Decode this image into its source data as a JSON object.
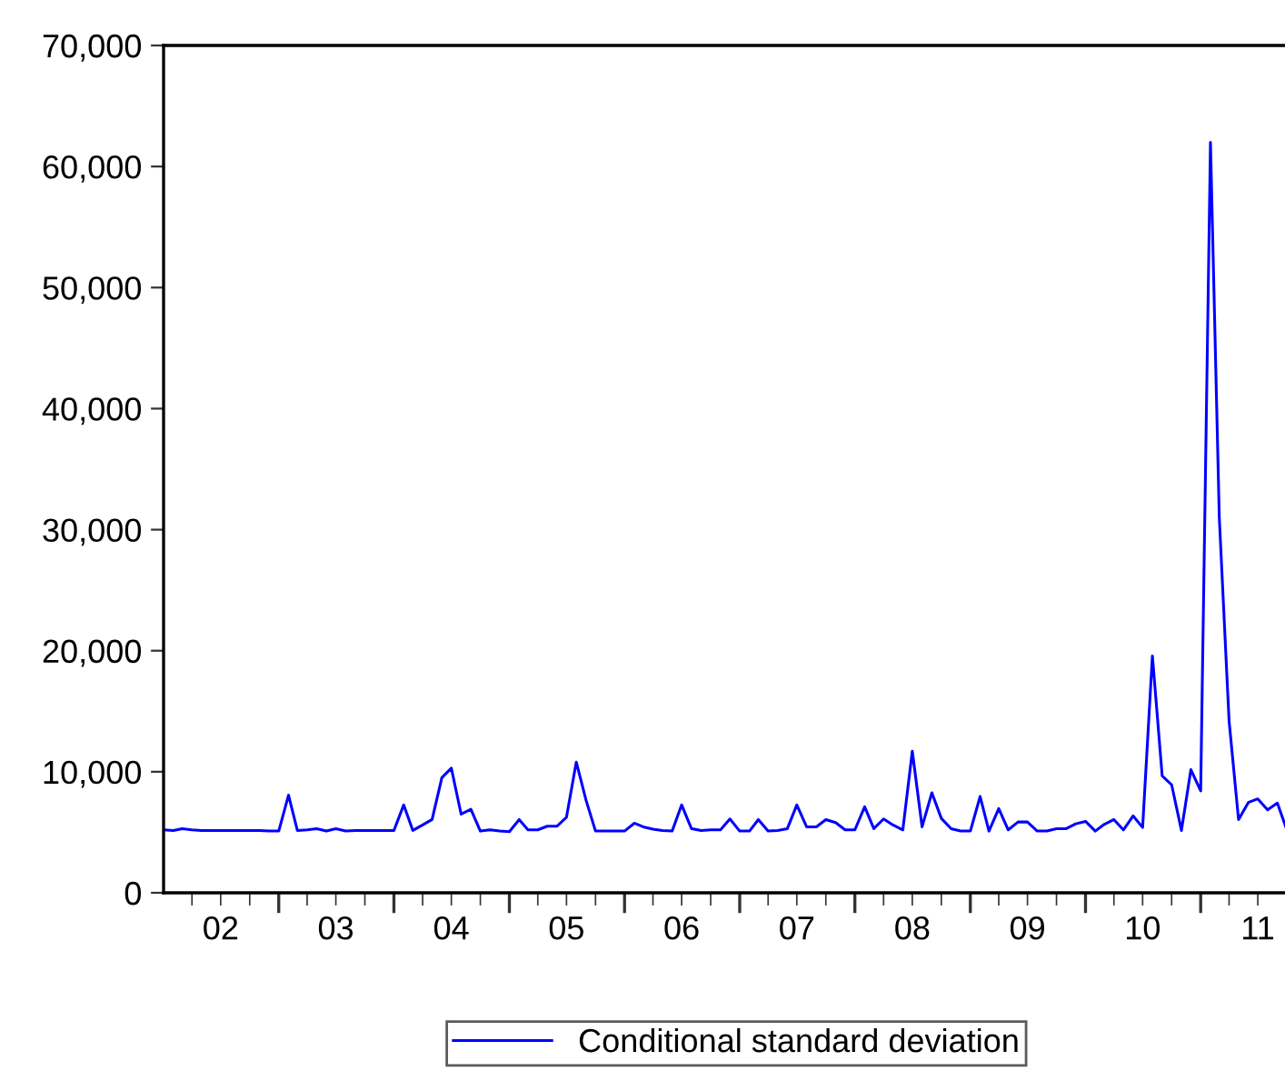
{
  "chart_data": {
    "type": "line",
    "x": [
      "2002-01",
      "2002-02",
      "2002-03",
      "2002-04",
      "2002-05",
      "2002-06",
      "2002-07",
      "2002-08",
      "2002-09",
      "2002-10",
      "2002-11",
      "2002-12",
      "2003-01",
      "2003-02",
      "2003-03",
      "2003-04",
      "2003-05",
      "2003-06",
      "2003-07",
      "2003-08",
      "2003-09",
      "2003-10",
      "2003-11",
      "2003-12",
      "2004-01",
      "2004-02",
      "2004-03",
      "2004-04",
      "2004-05",
      "2004-06",
      "2004-07",
      "2004-08",
      "2004-09",
      "2004-10",
      "2004-11",
      "2004-12",
      "2005-01",
      "2005-02",
      "2005-03",
      "2005-04",
      "2005-05",
      "2005-06",
      "2005-07",
      "2005-08",
      "2005-09",
      "2005-10",
      "2005-11",
      "2005-12",
      "2006-01",
      "2006-02",
      "2006-03",
      "2006-04",
      "2006-05",
      "2006-06",
      "2006-07",
      "2006-08",
      "2006-09",
      "2006-10",
      "2006-11",
      "2006-12",
      "2007-01",
      "2007-02",
      "2007-03",
      "2007-04",
      "2007-05",
      "2007-06",
      "2007-07",
      "2007-08",
      "2007-09",
      "2007-10",
      "2007-11",
      "2007-12",
      "2008-01",
      "2008-02",
      "2008-03",
      "2008-04",
      "2008-05",
      "2008-06",
      "2008-07",
      "2008-08",
      "2008-09",
      "2008-10",
      "2008-11",
      "2008-12",
      "2009-01",
      "2009-02",
      "2009-03",
      "2009-04",
      "2009-05",
      "2009-06",
      "2009-07",
      "2009-08",
      "2009-09",
      "2009-10",
      "2009-11",
      "2009-12",
      "2010-01",
      "2010-02",
      "2010-03",
      "2010-04",
      "2010-05",
      "2010-06",
      "2010-07",
      "2010-08",
      "2010-09",
      "2010-10",
      "2010-11",
      "2010-12",
      "2011-01",
      "2011-02",
      "2011-03",
      "2011-04",
      "2011-05",
      "2011-06",
      "2011-07",
      "2011-08",
      "2011-09",
      "2011-10"
    ],
    "series": [
      {
        "name": "Conditional standard deviation",
        "color": "#0000ff",
        "values": [
          5200,
          5150,
          5300,
          5200,
          5150,
          5150,
          5150,
          5150,
          5150,
          5150,
          5150,
          5100,
          5100,
          8070,
          5150,
          5200,
          5300,
          5100,
          5300,
          5100,
          5150,
          5150,
          5150,
          5150,
          5150,
          7260,
          5150,
          5600,
          6050,
          9510,
          10300,
          6500,
          6900,
          5100,
          5200,
          5100,
          5050,
          6050,
          5200,
          5200,
          5500,
          5500,
          6250,
          10800,
          7650,
          5100,
          5100,
          5100,
          5100,
          5750,
          5450,
          5250,
          5150,
          5100,
          7260,
          5300,
          5150,
          5200,
          5200,
          6100,
          5100,
          5100,
          6050,
          5100,
          5150,
          5300,
          7260,
          5450,
          5450,
          6050,
          5800,
          5200,
          5200,
          7110,
          5300,
          6100,
          5600,
          5200,
          11700,
          5450,
          8260,
          6150,
          5300,
          5100,
          5100,
          7960,
          5100,
          6960,
          5200,
          5850,
          5850,
          5100,
          5100,
          5300,
          5300,
          5700,
          5900,
          5100,
          5650,
          6050,
          5200,
          6350,
          5400,
          19570,
          9660,
          8920,
          5150,
          10170,
          8420,
          62000,
          31000,
          14200,
          6050,
          7460,
          7760,
          6860,
          7410,
          5200
        ]
      }
    ],
    "xlim": [
      "2002-01",
      "2011-10"
    ],
    "xticks": [
      {
        "value": "2002-04",
        "label": null
      },
      {
        "value": "2002-07",
        "label": "02"
      },
      {
        "value": "2002-10",
        "label": null
      },
      {
        "value": "2003-01",
        "label": null
      },
      {
        "value": "2003-04",
        "label": null
      },
      {
        "value": "2003-07",
        "label": "03"
      },
      {
        "value": "2003-10",
        "label": null
      },
      {
        "value": "2004-01",
        "label": null
      },
      {
        "value": "2004-04",
        "label": null
      },
      {
        "value": "2004-07",
        "label": "04"
      },
      {
        "value": "2004-10",
        "label": null
      },
      {
        "value": "2005-01",
        "label": null
      },
      {
        "value": "2005-04",
        "label": null
      },
      {
        "value": "2005-07",
        "label": "05"
      },
      {
        "value": "2005-10",
        "label": null
      },
      {
        "value": "2006-01",
        "label": null
      },
      {
        "value": "2006-04",
        "label": null
      },
      {
        "value": "2006-07",
        "label": "06"
      },
      {
        "value": "2006-10",
        "label": null
      },
      {
        "value": "2007-01",
        "label": null
      },
      {
        "value": "2007-04",
        "label": null
      },
      {
        "value": "2007-07",
        "label": "07"
      },
      {
        "value": "2007-10",
        "label": null
      },
      {
        "value": "2008-01",
        "label": null
      },
      {
        "value": "2008-04",
        "label": null
      },
      {
        "value": "2008-07",
        "label": "08"
      },
      {
        "value": "2008-10",
        "label": null
      },
      {
        "value": "2009-01",
        "label": null
      },
      {
        "value": "2009-04",
        "label": null
      },
      {
        "value": "2009-07",
        "label": "09"
      },
      {
        "value": "2009-10",
        "label": null
      },
      {
        "value": "2010-01",
        "label": null
      },
      {
        "value": "2010-04",
        "label": null
      },
      {
        "value": "2010-07",
        "label": "10"
      },
      {
        "value": "2010-10",
        "label": null
      },
      {
        "value": "2011-01",
        "label": null
      },
      {
        "value": "2011-04",
        "label": null
      },
      {
        "value": "2011-07",
        "label": "11"
      }
    ],
    "ylim": [
      0,
      70000
    ],
    "yticks": [
      0,
      {
        "value": 10000,
        "label": "10,000"
      },
      {
        "value": 20000,
        "label": "20,000"
      },
      {
        "value": 30000,
        "label": "30,000"
      },
      {
        "value": 40000,
        "label": "40,000"
      },
      {
        "value": 50000,
        "label": "50,000"
      },
      {
        "value": 60000,
        "label": "60,000"
      },
      {
        "value": 70000,
        "label": "70,000"
      }
    ],
    "grid": false,
    "legend": "bottom",
    "marker": "none",
    "line_style": "solid"
  }
}
